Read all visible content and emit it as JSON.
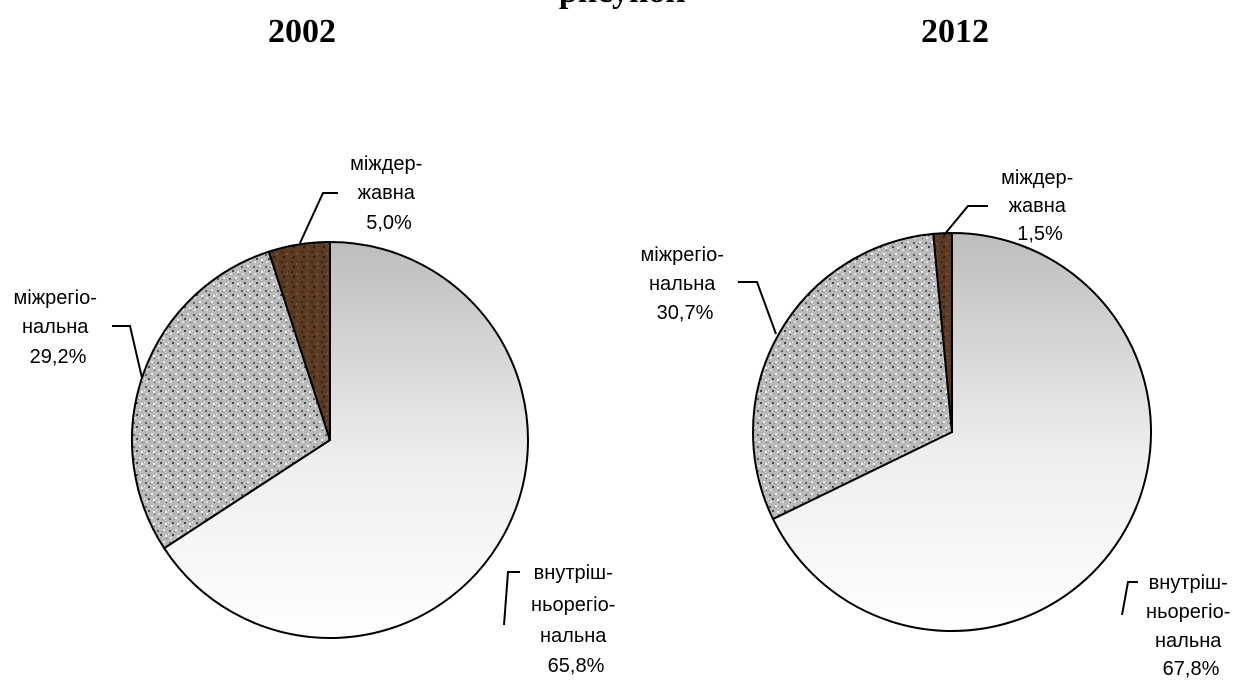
{
  "page": {
    "cut_title": "рисунок"
  },
  "chart_data": [
    {
      "type": "pie",
      "title": "2002",
      "slices": [
        {
          "name": "внутрішньорегіональна",
          "value": 65.8,
          "label_lines": [
            "внутріш-",
            "ньорегіо-",
            "нальна",
            "65,8%"
          ],
          "fill": "url(#grad-light)"
        },
        {
          "name": "міжрегіональна",
          "value": 29.2,
          "label_lines": [
            "міжрегіо-",
            "нальна",
            "29,2%"
          ],
          "fill": "url(#pat-granite)"
        },
        {
          "name": "міждержавна",
          "value": 5.0,
          "label_lines": [
            "міждер-",
            "жавна",
            "5,0%"
          ],
          "fill": "url(#pat-brown)"
        }
      ]
    },
    {
      "type": "pie",
      "title": "2012",
      "slices": [
        {
          "name": "внутрішньорегіональна",
          "value": 67.8,
          "label_lines": [
            "внутріш-",
            "ньорегіо-",
            "нальна",
            "67,8%"
          ],
          "fill": "url(#grad-light)"
        },
        {
          "name": "міжрегіональна",
          "value": 30.7,
          "label_lines": [
            "міжрегіо-",
            "нальна",
            "30,7%"
          ],
          "fill": "url(#pat-granite)"
        },
        {
          "name": "міждержавна",
          "value": 1.5,
          "label_lines": [
            "міждер-",
            "жавна",
            "1,5%"
          ],
          "fill": "url(#pat-brown)"
        }
      ]
    }
  ]
}
